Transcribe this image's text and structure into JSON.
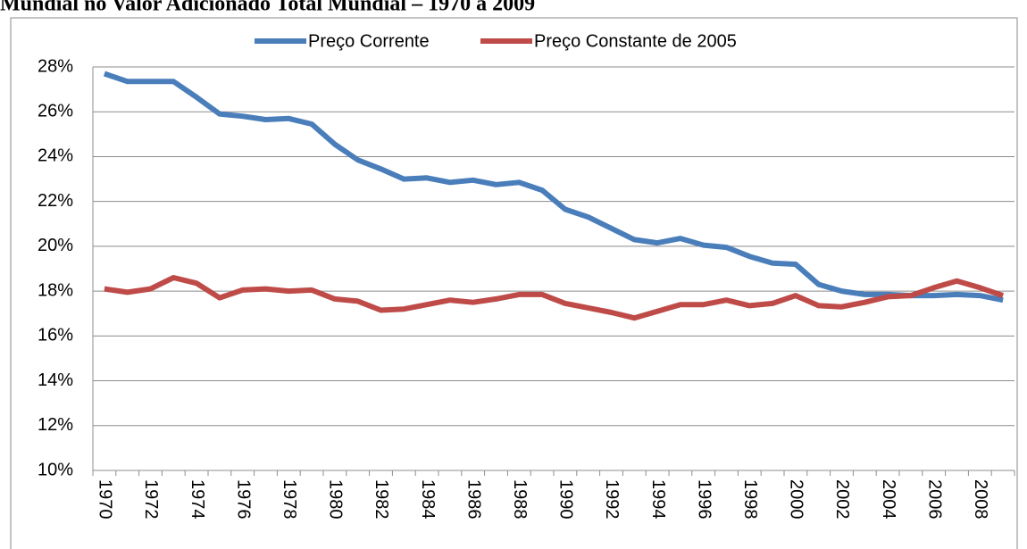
{
  "chart_data": {
    "type": "line",
    "title": "Mundial no Valor Adicionado Total Mundial – 1970 a 2009",
    "categories": [
      "1970",
      null,
      "1972",
      null,
      "1974",
      null,
      "1976",
      null,
      "1978",
      null,
      "1980",
      null,
      "1982",
      null,
      "1984",
      null,
      "1986",
      null,
      "1988",
      null,
      "1990",
      null,
      "1992",
      null,
      "1994",
      null,
      "1996",
      null,
      "1998",
      null,
      "2000",
      null,
      "2002",
      null,
      "2004",
      null,
      "2006",
      null,
      "2008",
      null
    ],
    "series": [
      {
        "name": "Preço Corrente",
        "color": "#4a7ebb",
        "values": [
          27.7,
          27.35,
          27.35,
          27.35,
          26.65,
          25.9,
          25.8,
          25.65,
          25.7,
          25.45,
          24.55,
          23.85,
          23.45,
          23.0,
          23.05,
          22.85,
          22.95,
          22.75,
          22.85,
          22.5,
          21.65,
          21.3,
          20.8,
          20.3,
          20.15,
          20.35,
          20.05,
          19.95,
          19.55,
          19.25,
          19.2,
          18.3,
          18.0,
          17.85,
          17.85,
          17.8,
          17.8,
          17.85,
          17.8,
          17.6
        ]
      },
      {
        "name": "Preço Constante de 2005",
        "color": "#be4b48",
        "values": [
          18.1,
          17.95,
          18.1,
          18.6,
          18.35,
          17.7,
          18.05,
          18.1,
          18.0,
          18.05,
          17.65,
          17.55,
          17.15,
          17.2,
          17.4,
          17.6,
          17.5,
          17.65,
          17.85,
          17.85,
          17.45,
          17.25,
          17.05,
          16.8,
          17.1,
          17.4,
          17.4,
          17.6,
          17.35,
          17.45,
          17.8,
          17.35,
          17.3,
          17.5,
          17.75,
          17.8,
          18.15,
          18.45,
          18.15,
          17.8
        ]
      }
    ],
    "ylim": [
      10,
      28
    ],
    "yticks": [
      {
        "value": 10,
        "label": "10%"
      },
      {
        "value": 12,
        "label": "12%"
      },
      {
        "value": 14,
        "label": "14%"
      },
      {
        "value": 16,
        "label": "16%"
      },
      {
        "value": 18,
        "label": "18%"
      },
      {
        "value": 20,
        "label": "20%"
      },
      {
        "value": 22,
        "label": "22%"
      },
      {
        "value": 24,
        "label": "24%"
      },
      {
        "value": 26,
        "label": "26%"
      },
      {
        "value": 28,
        "label": "28%"
      }
    ],
    "grid": true,
    "legend": "top"
  }
}
